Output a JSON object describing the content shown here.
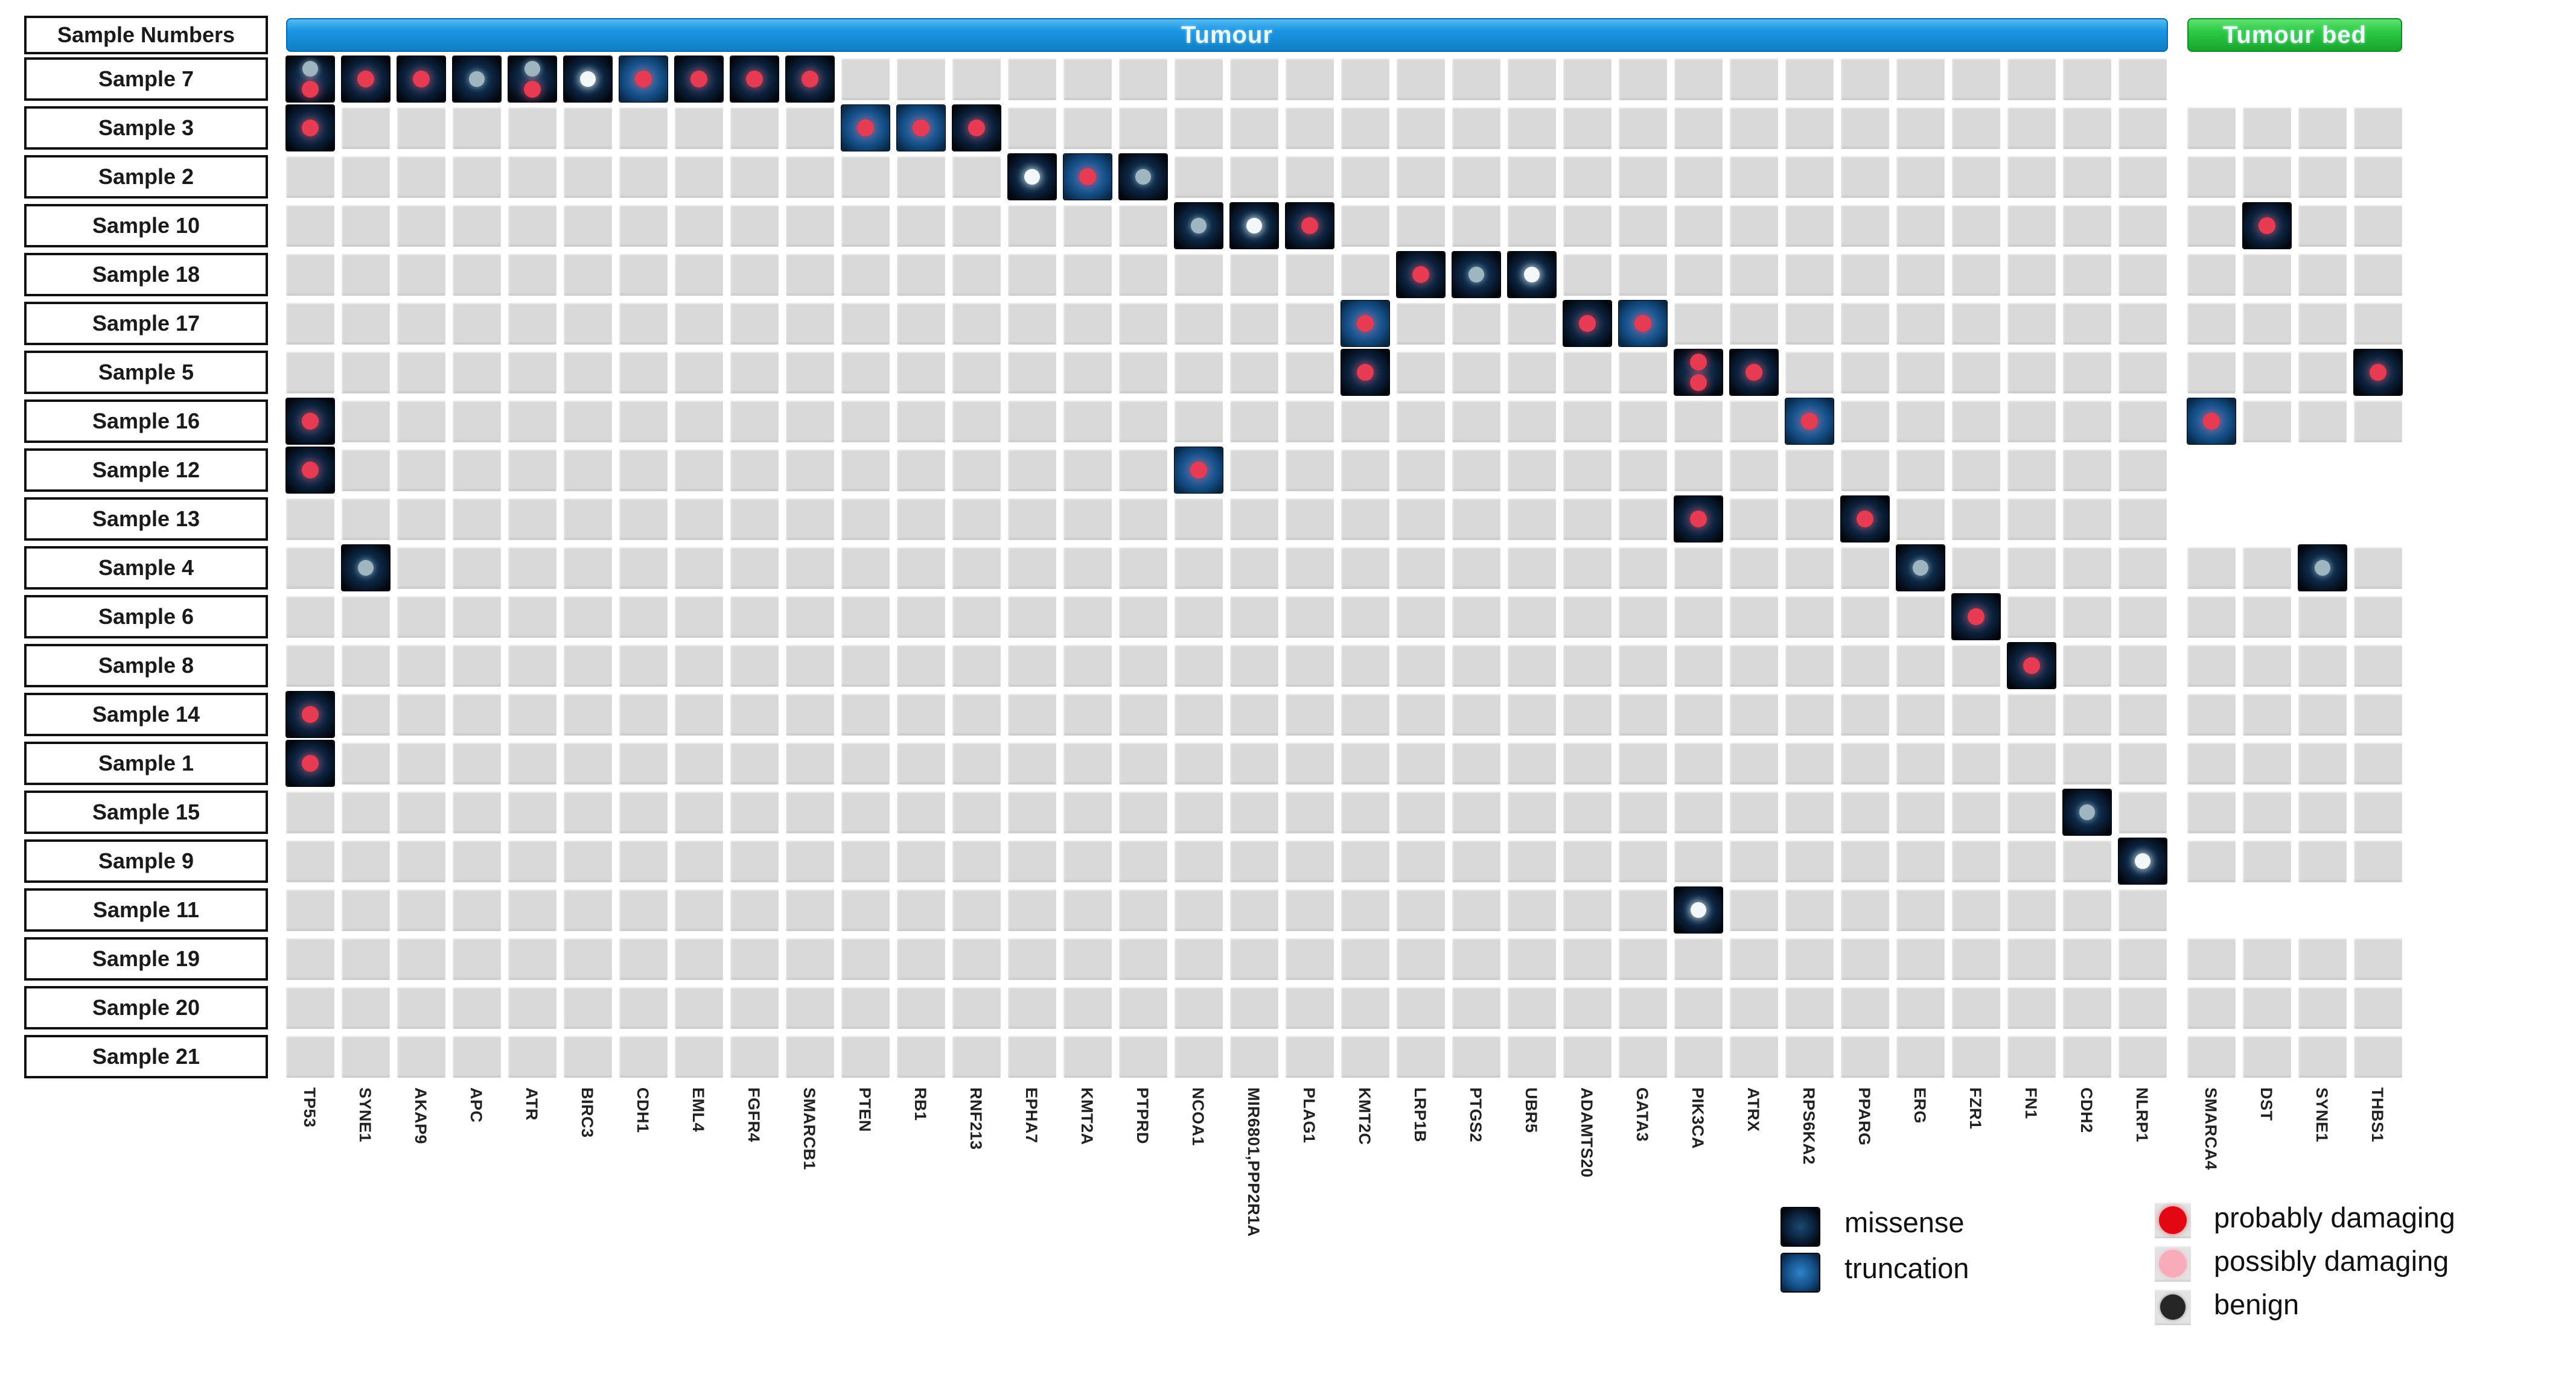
{
  "chart_data": {
    "type": "heatmap",
    "subtype": "oncoprint-mutation-matrix",
    "row_header": "Sample Numbers",
    "column_groups": [
      {
        "label": "Tumour",
        "color": "#1b96e3",
        "genes": [
          "TP53",
          "SYNE1",
          "AKAP9",
          "APC",
          "ATR",
          "BIRC3",
          "CDH1",
          "EML4",
          "FGFR4",
          "SMARCB1",
          "PTEN",
          "RB1",
          "RNF213",
          "EPHA7",
          "KMT2A",
          "PTPRD",
          "NCOA1",
          "MIR6801,PPP2R1A",
          "PLAG1",
          "KMT2C",
          "LRP1B",
          "PTGS2",
          "UBR5",
          "ADAMTS20",
          "GATA3",
          "PIK3CA",
          "ATRX",
          "RPS6KA2",
          "PPARG",
          "ERG",
          "FZR1",
          "FN1",
          "CDH2",
          "NLRP1"
        ]
      },
      {
        "label": "Tumour bed",
        "color": "#2bc943",
        "genes": [
          "SMARCA4",
          "DST",
          "SYNE1",
          "THBS1"
        ]
      }
    ],
    "rows": [
      {
        "sample": "Sample 7",
        "tumour_bed_cells": false
      },
      {
        "sample": "Sample 3",
        "tumour_bed_cells": true
      },
      {
        "sample": "Sample 2",
        "tumour_bed_cells": true
      },
      {
        "sample": "Sample 10",
        "tumour_bed_cells": true
      },
      {
        "sample": "Sample 18",
        "tumour_bed_cells": true
      },
      {
        "sample": "Sample 17",
        "tumour_bed_cells": true
      },
      {
        "sample": "Sample 5",
        "tumour_bed_cells": true
      },
      {
        "sample": "Sample 16",
        "tumour_bed_cells": true
      },
      {
        "sample": "Sample 12",
        "tumour_bed_cells": false
      },
      {
        "sample": "Sample 13",
        "tumour_bed_cells": false
      },
      {
        "sample": "Sample 4",
        "tumour_bed_cells": true
      },
      {
        "sample": "Sample 6",
        "tumour_bed_cells": true
      },
      {
        "sample": "Sample 8",
        "tumour_bed_cells": true
      },
      {
        "sample": "Sample 14",
        "tumour_bed_cells": true
      },
      {
        "sample": "Sample 1",
        "tumour_bed_cells": true
      },
      {
        "sample": "Sample 15",
        "tumour_bed_cells": true
      },
      {
        "sample": "Sample 9",
        "tumour_bed_cells": true
      },
      {
        "sample": "Sample 11",
        "tumour_bed_cells": false
      },
      {
        "sample": "Sample 19",
        "tumour_bed_cells": true
      },
      {
        "sample": "Sample 20",
        "tumour_bed_cells": true
      },
      {
        "sample": "Sample 21",
        "tumour_bed_cells": true
      }
    ],
    "mutations": [
      {
        "sample": "Sample 7",
        "gene": "TP53",
        "group": "Tumour",
        "type": "missense",
        "dots": [
          "grey",
          "red"
        ]
      },
      {
        "sample": "Sample 7",
        "gene": "SYNE1",
        "group": "Tumour",
        "type": "missense",
        "dots": [
          "red"
        ]
      },
      {
        "sample": "Sample 7",
        "gene": "AKAP9",
        "group": "Tumour",
        "type": "missense",
        "dots": [
          "red"
        ]
      },
      {
        "sample": "Sample 7",
        "gene": "APC",
        "group": "Tumour",
        "type": "missense",
        "dots": [
          "grey"
        ]
      },
      {
        "sample": "Sample 7",
        "gene": "ATR",
        "group": "Tumour",
        "type": "missense",
        "dots": [
          "grey",
          "red"
        ]
      },
      {
        "sample": "Sample 7",
        "gene": "BIRC3",
        "group": "Tumour",
        "type": "missense",
        "dots": [
          "white"
        ]
      },
      {
        "sample": "Sample 7",
        "gene": "CDH1",
        "group": "Tumour",
        "type": "truncation",
        "dots": [
          "red"
        ]
      },
      {
        "sample": "Sample 7",
        "gene": "EML4",
        "group": "Tumour",
        "type": "missense",
        "dots": [
          "red"
        ]
      },
      {
        "sample": "Sample 7",
        "gene": "FGFR4",
        "group": "Tumour",
        "type": "missense",
        "dots": [
          "red"
        ]
      },
      {
        "sample": "Sample 7",
        "gene": "SMARCB1",
        "group": "Tumour",
        "type": "missense",
        "dots": [
          "red"
        ]
      },
      {
        "sample": "Sample 3",
        "gene": "TP53",
        "group": "Tumour",
        "type": "missense",
        "dots": [
          "red"
        ]
      },
      {
        "sample": "Sample 3",
        "gene": "PTEN",
        "group": "Tumour",
        "type": "truncation",
        "dots": [
          "red"
        ]
      },
      {
        "sample": "Sample 3",
        "gene": "RB1",
        "group": "Tumour",
        "type": "truncation",
        "dots": [
          "red"
        ]
      },
      {
        "sample": "Sample 3",
        "gene": "RNF213",
        "group": "Tumour",
        "type": "missense",
        "dots": [
          "red"
        ]
      },
      {
        "sample": "Sample 2",
        "gene": "EPHA7",
        "group": "Tumour",
        "type": "missense",
        "dots": [
          "white"
        ]
      },
      {
        "sample": "Sample 2",
        "gene": "KMT2A",
        "group": "Tumour",
        "type": "truncation",
        "dots": [
          "red"
        ]
      },
      {
        "sample": "Sample 2",
        "gene": "PTPRD",
        "group": "Tumour",
        "type": "missense",
        "dots": [
          "grey"
        ]
      },
      {
        "sample": "Sample 10",
        "gene": "NCOA1",
        "group": "Tumour",
        "type": "missense",
        "dots": [
          "grey"
        ]
      },
      {
        "sample": "Sample 10",
        "gene": "MIR6801,PPP2R1A",
        "group": "Tumour",
        "type": "missense",
        "dots": [
          "white"
        ]
      },
      {
        "sample": "Sample 10",
        "gene": "PLAG1",
        "group": "Tumour",
        "type": "missense",
        "dots": [
          "red"
        ]
      },
      {
        "sample": "Sample 10",
        "gene": "DST",
        "group": "Tumour bed",
        "type": "missense",
        "dots": [
          "red"
        ]
      },
      {
        "sample": "Sample 18",
        "gene": "LRP1B",
        "group": "Tumour",
        "type": "missense",
        "dots": [
          "red"
        ]
      },
      {
        "sample": "Sample 18",
        "gene": "PTGS2",
        "group": "Tumour",
        "type": "missense",
        "dots": [
          "grey"
        ]
      },
      {
        "sample": "Sample 18",
        "gene": "UBR5",
        "group": "Tumour",
        "type": "missense",
        "dots": [
          "white"
        ]
      },
      {
        "sample": "Sample 17",
        "gene": "KMT2C",
        "group": "Tumour",
        "type": "truncation",
        "dots": [
          "red"
        ]
      },
      {
        "sample": "Sample 17",
        "gene": "ADAMTS20",
        "group": "Tumour",
        "type": "missense",
        "dots": [
          "red"
        ]
      },
      {
        "sample": "Sample 17",
        "gene": "GATA3",
        "group": "Tumour",
        "type": "truncation",
        "dots": [
          "red"
        ]
      },
      {
        "sample": "Sample 5",
        "gene": "KMT2C",
        "group": "Tumour",
        "type": "missense",
        "dots": [
          "red"
        ]
      },
      {
        "sample": "Sample 5",
        "gene": "PIK3CA",
        "group": "Tumour",
        "type": "missense",
        "dots": [
          "red",
          "red"
        ]
      },
      {
        "sample": "Sample 5",
        "gene": "ATRX",
        "group": "Tumour",
        "type": "missense",
        "dots": [
          "red"
        ]
      },
      {
        "sample": "Sample 5",
        "gene": "THBS1",
        "group": "Tumour bed",
        "type": "missense",
        "dots": [
          "red"
        ]
      },
      {
        "sample": "Sample 16",
        "gene": "TP53",
        "group": "Tumour",
        "type": "missense",
        "dots": [
          "red"
        ]
      },
      {
        "sample": "Sample 16",
        "gene": "RPS6KA2",
        "group": "Tumour",
        "type": "truncation",
        "dots": [
          "red"
        ]
      },
      {
        "sample": "Sample 16",
        "gene": "SMARCA4",
        "group": "Tumour bed",
        "type": "truncation",
        "dots": [
          "red"
        ]
      },
      {
        "sample": "Sample 12",
        "gene": "TP53",
        "group": "Tumour",
        "type": "missense",
        "dots": [
          "red"
        ]
      },
      {
        "sample": "Sample 12",
        "gene": "NCOA1",
        "group": "Tumour",
        "type": "truncation",
        "dots": [
          "red"
        ]
      },
      {
        "sample": "Sample 13",
        "gene": "PIK3CA",
        "group": "Tumour",
        "type": "missense",
        "dots": [
          "red"
        ]
      },
      {
        "sample": "Sample 13",
        "gene": "PPARG",
        "group": "Tumour",
        "type": "missense",
        "dots": [
          "red"
        ]
      },
      {
        "sample": "Sample 4",
        "gene": "SYNE1",
        "group": "Tumour",
        "type": "missense",
        "dots": [
          "grey"
        ]
      },
      {
        "sample": "Sample 4",
        "gene": "ERG",
        "group": "Tumour",
        "type": "missense",
        "dots": [
          "grey"
        ]
      },
      {
        "sample": "Sample 4",
        "gene": "SYNE1",
        "group": "Tumour bed",
        "type": "missense",
        "dots": [
          "grey"
        ]
      },
      {
        "sample": "Sample 6",
        "gene": "FZR1",
        "group": "Tumour",
        "type": "missense",
        "dots": [
          "red"
        ]
      },
      {
        "sample": "Sample 8",
        "gene": "FN1",
        "group": "Tumour",
        "type": "missense",
        "dots": [
          "red"
        ]
      },
      {
        "sample": "Sample 14",
        "gene": "TP53",
        "group": "Tumour",
        "type": "missense",
        "dots": [
          "red"
        ]
      },
      {
        "sample": "Sample 1",
        "gene": "TP53",
        "group": "Tumour",
        "type": "missense",
        "dots": [
          "red"
        ]
      },
      {
        "sample": "Sample 15",
        "gene": "CDH2",
        "group": "Tumour",
        "type": "missense",
        "dots": [
          "grey"
        ]
      },
      {
        "sample": "Sample 9",
        "gene": "NLRP1",
        "group": "Tumour",
        "type": "missense",
        "dots": [
          "white"
        ]
      },
      {
        "sample": "Sample 11",
        "gene": "PIK3CA",
        "group": "Tumour",
        "type": "missense",
        "dots": [
          "white"
        ]
      }
    ],
    "legend": {
      "mutation_types": [
        {
          "label": "missense",
          "color": "#0c2440"
        },
        {
          "label": "truncation",
          "color": "#155089"
        }
      ],
      "dot_types": [
        {
          "label": "probably damaging",
          "color": "#e30613"
        },
        {
          "label": "possibly damaging",
          "color": "#f8abb9"
        },
        {
          "label": "benign",
          "color": "#262626"
        }
      ]
    },
    "colors": {
      "tumour_band": "#1b96e3",
      "tumour_bed_band": "#2bc943",
      "empty_cell": "#d9d9d9",
      "missense_cell": "#0c2440",
      "truncation_cell": "#155089",
      "dots": {
        "red": "#e63b52",
        "grey": "#9fb6c1",
        "white": "#f2f7fa",
        "pink": "#f8abb9"
      }
    },
    "dot_meanings": {
      "red": "probably damaging",
      "pink": "possibly damaging",
      "grey": "benign",
      "white": "benign"
    },
    "layout_hints": {
      "grid_on": true,
      "legend_position": "bottom-right",
      "gene_labels": "rotated-90"
    }
  }
}
